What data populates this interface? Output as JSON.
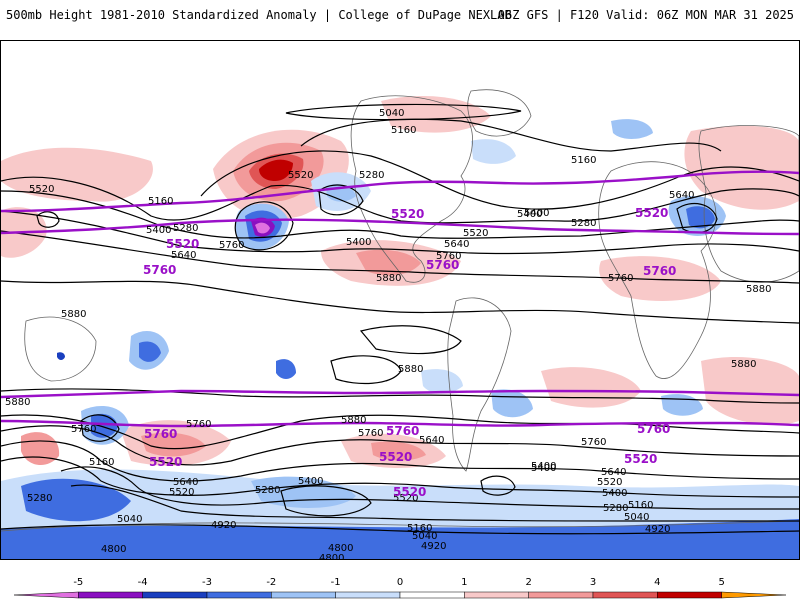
{
  "header": {
    "title_left": "500mb Height 1981-2010 Standardized Anomaly | College of DuPage NEXLAB",
    "title_right": "06Z GFS | F120 Valid: 06Z MON MAR 31 2025"
  },
  "map": {
    "black_contour_labels": [
      {
        "text": "5040"
      },
      {
        "text": "5160"
      },
      {
        "text": "5160"
      },
      {
        "text": "5280"
      },
      {
        "text": "5520"
      },
      {
        "text": "5520"
      },
      {
        "text": "5160"
      },
      {
        "text": "5400"
      },
      {
        "text": "5280"
      },
      {
        "text": "5640"
      },
      {
        "text": "5760"
      },
      {
        "text": "5400"
      },
      {
        "text": "5400"
      },
      {
        "text": "5520"
      },
      {
        "text": "5640"
      },
      {
        "text": "5760"
      },
      {
        "text": "5280"
      },
      {
        "text": "5640"
      },
      {
        "text": "5400"
      },
      {
        "text": "5760"
      },
      {
        "text": "5880"
      },
      {
        "text": "5880"
      },
      {
        "text": "5880"
      },
      {
        "text": "5880"
      },
      {
        "text": "5880"
      },
      {
        "text": "5880"
      },
      {
        "text": "5880"
      },
      {
        "text": "5760"
      },
      {
        "text": "5760"
      },
      {
        "text": "5760"
      },
      {
        "text": "5640"
      },
      {
        "text": "5760"
      },
      {
        "text": "5160"
      },
      {
        "text": "5640"
      },
      {
        "text": "5520"
      },
      {
        "text": "5400"
      },
      {
        "text": "5280"
      },
      {
        "text": "5040"
      },
      {
        "text": "5280"
      },
      {
        "text": "5400"
      },
      {
        "text": "5520"
      },
      {
        "text": "5160"
      },
      {
        "text": "5040"
      },
      {
        "text": "4920"
      },
      {
        "text": "5400"
      },
      {
        "text": "5640"
      },
      {
        "text": "5520"
      },
      {
        "text": "5400"
      },
      {
        "text": "5280"
      },
      {
        "text": "5160"
      },
      {
        "text": "5040"
      },
      {
        "text": "4920"
      },
      {
        "text": "4920"
      },
      {
        "text": "4800"
      },
      {
        "text": "4800"
      },
      {
        "text": "4800"
      },
      {
        "text": "4800"
      }
    ],
    "purple_contour_labels": [
      {
        "text": "5520"
      },
      {
        "text": "5520"
      },
      {
        "text": "5520"
      },
      {
        "text": "5760"
      },
      {
        "text": "5760"
      },
      {
        "text": "5760"
      },
      {
        "text": "5760"
      },
      {
        "text": "5760"
      },
      {
        "text": "5760"
      },
      {
        "text": "5520"
      },
      {
        "text": "5520"
      },
      {
        "text": "5520"
      },
      {
        "text": "5520"
      }
    ]
  },
  "colorbar": {
    "ticks": [
      "-5",
      "-4",
      "-3",
      "-2",
      "-1",
      "0",
      "1",
      "2",
      "3",
      "4",
      "5"
    ],
    "colors": [
      "#e070e0",
      "#8a10c0",
      "#1a3fbf",
      "#3f6de0",
      "#9ec3f5",
      "#c9defa",
      "#ffffff",
      "#f8c9c9",
      "#f29a9a",
      "#e05555",
      "#c00000",
      "#ff9a00"
    ]
  },
  "colors": {
    "purple_contour": "#9a10c8",
    "black_contour": "#000000"
  }
}
